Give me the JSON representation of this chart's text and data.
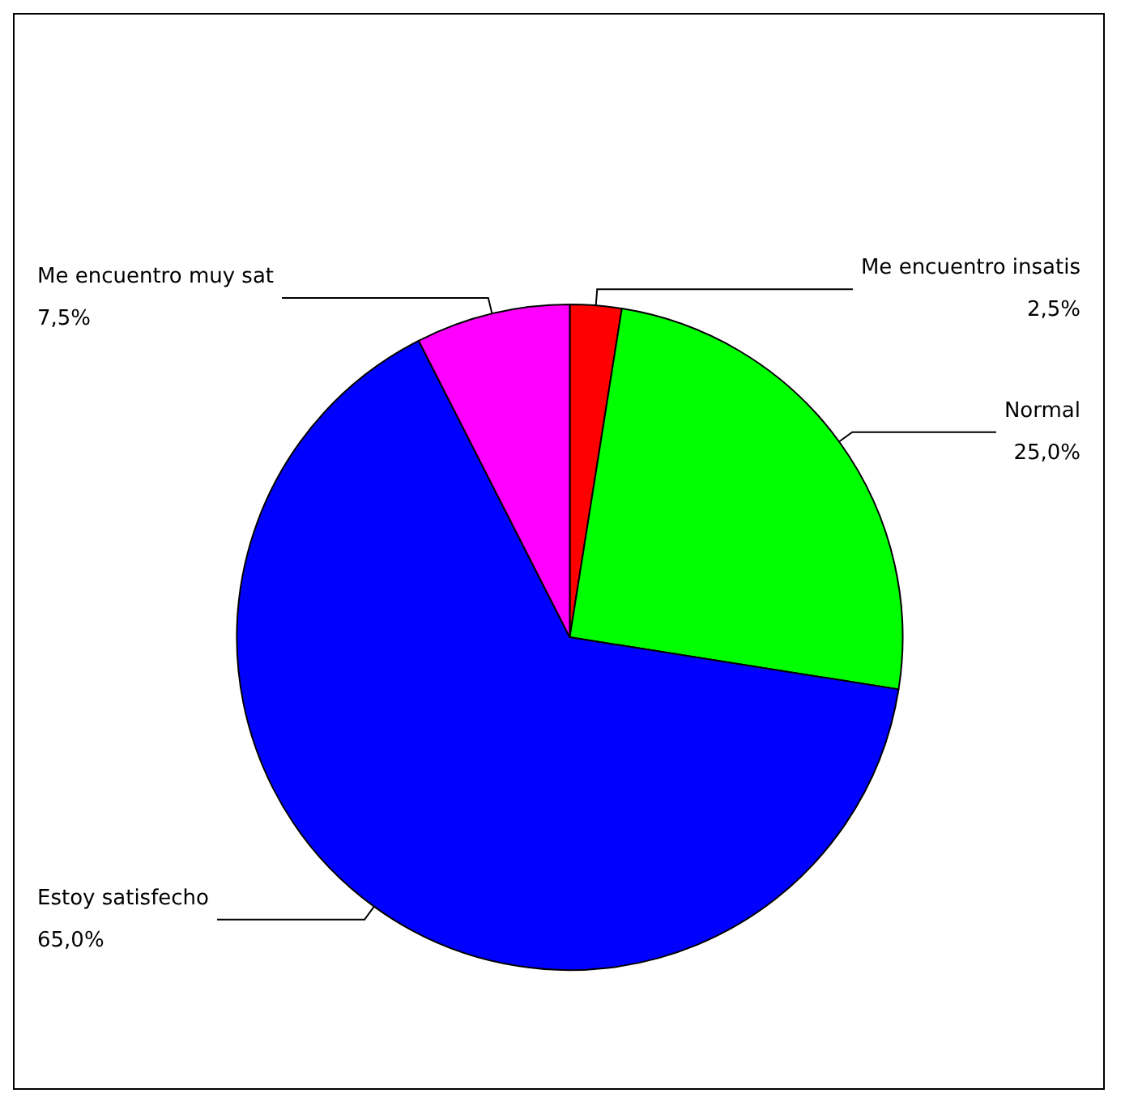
{
  "chart_data": {
    "type": "pie",
    "categories": [
      "Me encuentro insatis",
      "Normal",
      "Estoy satisfecho",
      "Me encuentro muy sat"
    ],
    "values": [
      2.5,
      25,
      65,
      7.5
    ],
    "value_labels": [
      "2,5%",
      "25,0%",
      "65,0%",
      "7,5%"
    ],
    "colors": [
      "#ff0000",
      "#00ff00",
      "#0000ff",
      "#ff00ff"
    ],
    "legend": false
  }
}
